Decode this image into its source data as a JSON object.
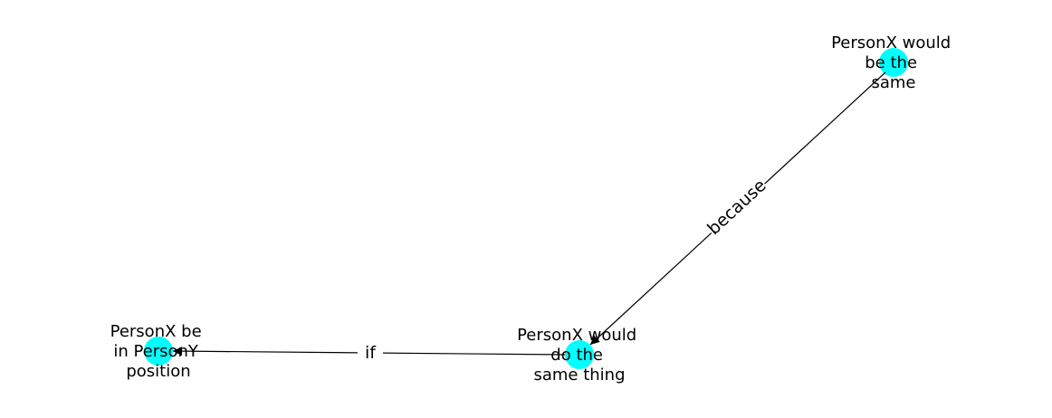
{
  "graph": {
    "node_color": "#00FFFF",
    "edge_color": "#000000",
    "nodes": {
      "be_same": {
        "label_lines": [
          "PersonX would",
          "be the",
          "same"
        ]
      },
      "do_same": {
        "label_lines": [
          "PersonX would",
          "do the",
          "same thing"
        ]
      },
      "be_position": {
        "label_lines": [
          "PersonX be",
          "in PersonY",
          "position"
        ]
      }
    },
    "edges": {
      "because": {
        "label": "because",
        "source": "be_same",
        "target": "do_same"
      },
      "if": {
        "label": "if",
        "source": "do_same",
        "target": "be_position"
      }
    }
  }
}
